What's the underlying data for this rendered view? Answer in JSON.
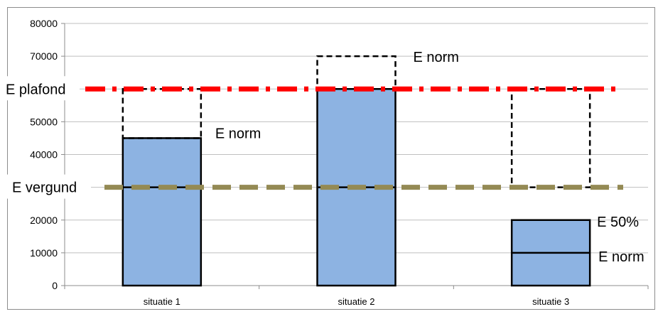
{
  "chart_data": {
    "type": "bar",
    "categories": [
      "situatie 1",
      "situatie 2",
      "situatie 3"
    ],
    "values": [
      45000,
      60000,
      20000
    ],
    "ylim": [
      0,
      80000
    ],
    "yticks": [
      0,
      10000,
      20000,
      30000,
      40000,
      50000,
      60000,
      70000,
      80000
    ],
    "hidden_yticks": [
      30000,
      60000
    ],
    "grid": true,
    "colors": {
      "bar": "#8db3e2",
      "plafond_line": "#ff0000",
      "vergund_line": "#948a54",
      "outline": "#000000",
      "gridline": "#bfbfbf"
    },
    "reference_lines": [
      {
        "name": "E plafond",
        "value": 60000,
        "style": "dash-dot",
        "color": "#ff0000"
      },
      {
        "name": "E vergund",
        "value": 30000,
        "style": "dashed",
        "color": "#948a54"
      }
    ],
    "dashed_boxes": [
      {
        "category": "situatie 1",
        "from": 45000,
        "to": 60000
      },
      {
        "category": "situatie 2",
        "from": 60000,
        "to": 70000
      },
      {
        "category": "situatie 3",
        "from": 30000,
        "to": 60000
      }
    ],
    "bar_lines": [
      {
        "category": "situatie 1",
        "value": 30000
      },
      {
        "category": "situatie 2",
        "value": 30000
      },
      {
        "category": "situatie 3",
        "value": 10000
      }
    ],
    "annotations": [
      {
        "text": "E norm",
        "category": "situatie 1",
        "value": 45000
      },
      {
        "text": "E norm",
        "category": "situatie 2",
        "value": 70000
      },
      {
        "text": "E 50%",
        "category": "situatie 3",
        "value": 20000
      },
      {
        "text": "E norm",
        "category": "situatie 3",
        "value": 10000
      }
    ]
  }
}
